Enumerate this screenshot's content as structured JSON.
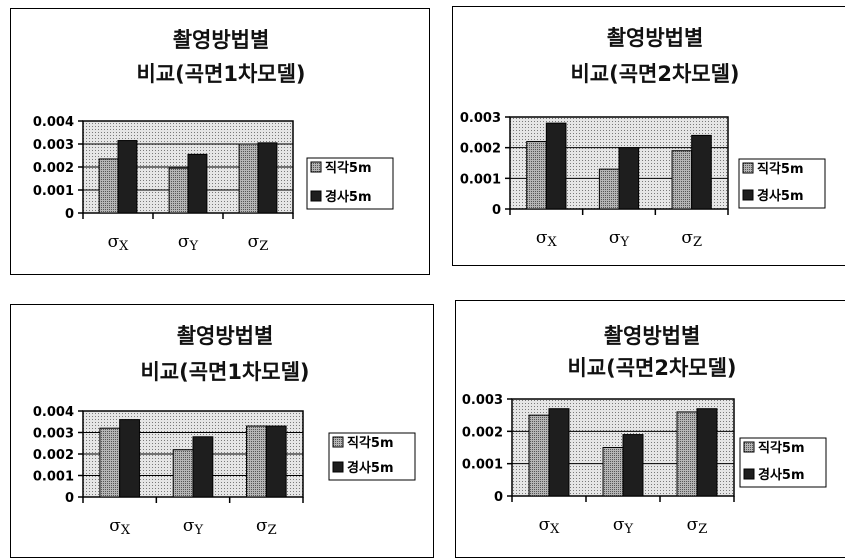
{
  "chart_data": [
    {
      "type": "bar",
      "title": [
        "촬영방법별",
        "비교(곡면1차모델)"
      ],
      "categories": [
        "σX",
        "σY",
        "σZ"
      ],
      "ylim": [
        0,
        0.004
      ],
      "yticks": [
        "0.004",
        "0.003",
        "0.002",
        "0.001",
        "0"
      ],
      "series": [
        {
          "name": "직각5m",
          "values": [
            0.00235,
            0.00195,
            0.003
          ],
          "color": "#9a9a9a"
        },
        {
          "name": "경사5m",
          "values": [
            0.00315,
            0.00255,
            0.00305
          ],
          "color": "#1e1e1e"
        }
      ],
      "legend": "right",
      "grid": true
    },
    {
      "type": "bar",
      "title": [
        "촬영방법별",
        "비교(곡면2차모델)"
      ],
      "categories": [
        "σX",
        "σY",
        "σZ"
      ],
      "ylim": [
        0,
        0.003
      ],
      "yticks": [
        "0.003",
        "0.002",
        "0.001",
        "0"
      ],
      "series": [
        {
          "name": "직각5m",
          "values": [
            0.0022,
            0.0013,
            0.0019
          ],
          "color": "#9a9a9a"
        },
        {
          "name": "경사5m",
          "values": [
            0.0028,
            0.002,
            0.0024
          ],
          "color": "#1e1e1e"
        }
      ],
      "legend": "right",
      "grid": true
    },
    {
      "type": "bar",
      "title": [
        "촬영방법별",
        "비교(곡면1차모델)"
      ],
      "categories": [
        "σX",
        "σY",
        "σZ"
      ],
      "ylim": [
        0,
        0.004
      ],
      "yticks": [
        "0.004",
        "0.003",
        "0.002",
        "0.001",
        "0"
      ],
      "series": [
        {
          "name": "직각5m",
          "values": [
            0.0032,
            0.0022,
            0.0033
          ],
          "color": "#9a9a9a"
        },
        {
          "name": "경사5m",
          "values": [
            0.0036,
            0.0028,
            0.0033
          ],
          "color": "#1e1e1e"
        }
      ],
      "legend": "right",
      "grid": true
    },
    {
      "type": "bar",
      "title": [
        "촬영방법별",
        "비교(곡면2차모델)"
      ],
      "categories": [
        "σX",
        "σY",
        "σZ"
      ],
      "ylim": [
        0,
        0.003
      ],
      "yticks": [
        "0.003",
        "0.002",
        "0.001",
        "0"
      ],
      "series": [
        {
          "name": "직각5m",
          "values": [
            0.0025,
            0.0015,
            0.0026
          ],
          "color": "#9a9a9a"
        },
        {
          "name": "경사5m",
          "values": [
            0.0027,
            0.0019,
            0.0027
          ],
          "color": "#1e1e1e"
        }
      ],
      "legend": "right",
      "grid": true
    }
  ]
}
